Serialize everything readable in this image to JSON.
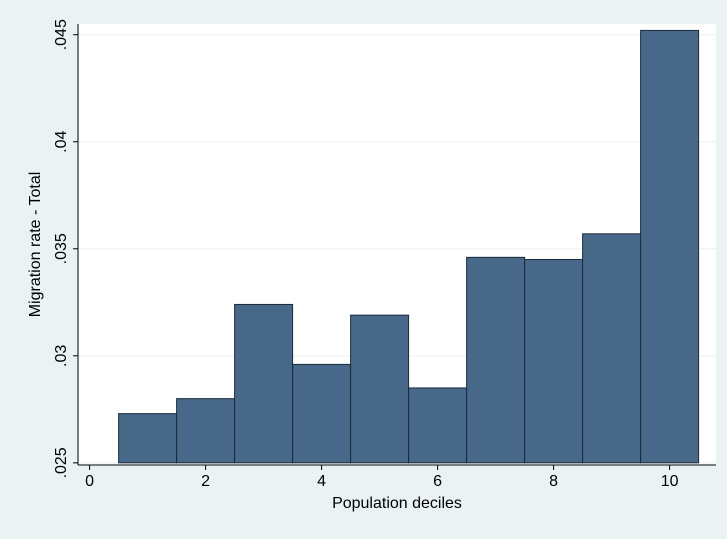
{
  "chart_data": {
    "type": "bar",
    "title": "",
    "xlabel": "Population deciles",
    "ylabel": "Migration rate - Total",
    "x": [
      1,
      2,
      3,
      4,
      5,
      6,
      7,
      8,
      9,
      10
    ],
    "values": [
      0.0273,
      0.028,
      0.0324,
      0.0296,
      0.0319,
      0.0285,
      0.0346,
      0.0345,
      0.0357,
      0.0452
    ],
    "bar_width": 1,
    "xlim": [
      -0.2,
      10.8
    ],
    "ylim": [
      0.0249,
      0.0455
    ],
    "x_ticks": [
      0,
      2,
      4,
      6,
      8,
      10
    ],
    "x_tick_labels": [
      "0",
      "2",
      "4",
      "6",
      "8",
      "10"
    ],
    "y_ticks": [
      0.025,
      0.03,
      0.035,
      0.04,
      0.045
    ],
    "y_tick_labels": [
      ".025",
      ".03",
      ".035",
      ".04",
      ".045"
    ],
    "grid": true,
    "legend": "none",
    "colors": {
      "background": "#eaf2f3",
      "plot_background": "#ffffff",
      "bar_fill": "#476889",
      "bar_edge": "#1c2b3a",
      "grid": "#eaf2f3",
      "axis": "#000000"
    }
  }
}
